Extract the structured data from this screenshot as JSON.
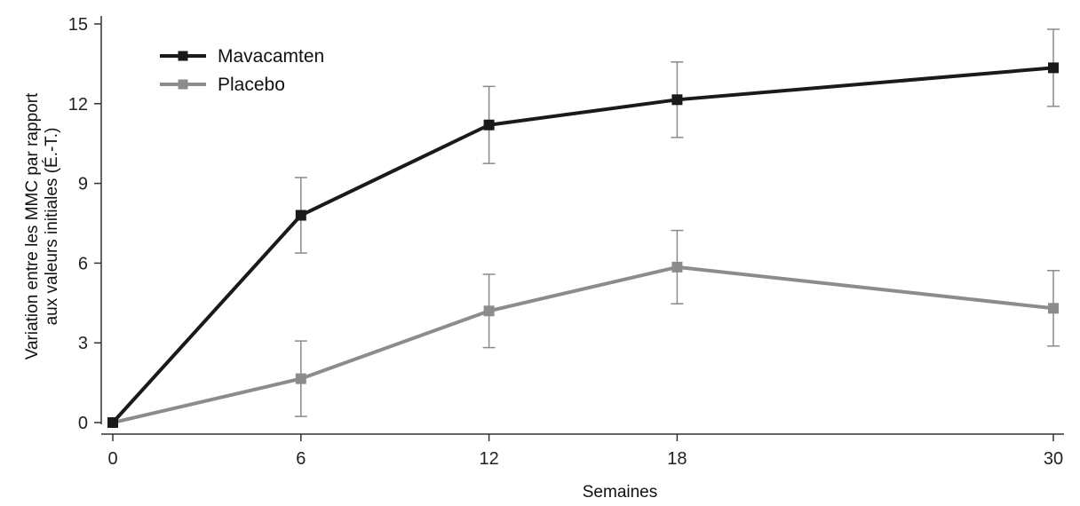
{
  "chart_data": {
    "type": "line",
    "x": [
      0,
      6,
      12,
      18,
      30
    ],
    "xticks": [
      0,
      6,
      12,
      18,
      30
    ],
    "yticks": [
      0,
      3,
      6,
      9,
      12,
      15
    ],
    "xlim": [
      0,
      30
    ],
    "ylim": [
      0,
      15
    ],
    "xlabel": "Semaines",
    "ylabel_line1": "Variation entre les MMC par rapport",
    "ylabel_line2": "aux valeurs initiales (É.-T.)",
    "grid": false,
    "legend_position": "top-left",
    "series": [
      {
        "name": "Mavacamten",
        "color": "#1a1a1a",
        "values": [
          0.0,
          7.8,
          11.2,
          12.15,
          13.35
        ],
        "error": [
          0,
          1.42,
          1.45,
          1.42,
          1.45
        ]
      },
      {
        "name": "Placebo",
        "color": "#8c8c8c",
        "values": [
          0.0,
          1.65,
          4.2,
          5.85,
          4.3
        ],
        "error": [
          0,
          1.42,
          1.38,
          1.38,
          1.42
        ]
      }
    ]
  }
}
